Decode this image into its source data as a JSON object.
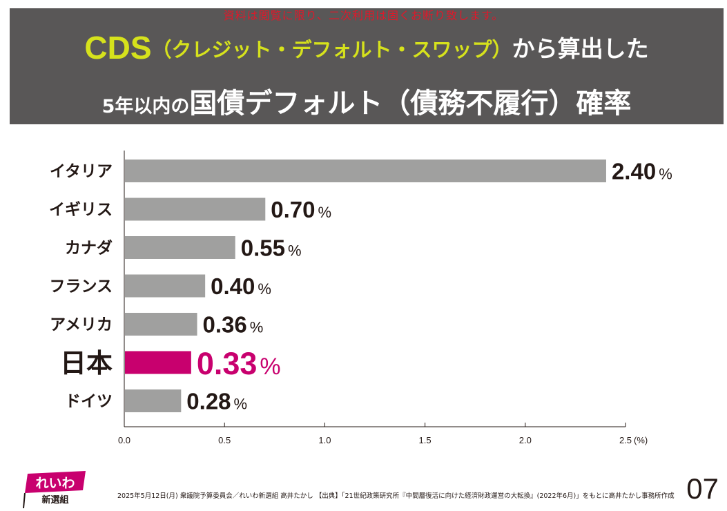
{
  "notice": "資料は閲覧に限り、二次利用は固くお断り致します。",
  "title": {
    "line1_cds": "CDS",
    "line1_paren": "（クレジット・デフォルト・スワップ）",
    "line1_rest": "から算出した",
    "line2_small": "5年以内の",
    "line2_big": "国債デフォルト（債務不履行）確率"
  },
  "colors": {
    "bar": "#a0a09f",
    "highlight": "#c8006e",
    "header_bg": "#595757",
    "accent": "#d6e21c"
  },
  "chart_data": {
    "type": "bar",
    "orientation": "horizontal",
    "categories": [
      "イタリア",
      "イギリス",
      "カナダ",
      "フランス",
      "アメリカ",
      "日本",
      "ドイツ"
    ],
    "values": [
      2.4,
      0.7,
      0.55,
      0.4,
      0.36,
      0.33,
      0.28
    ],
    "value_labels": [
      "2.40",
      "0.70",
      "0.55",
      "0.40",
      "0.36",
      "0.33",
      "0.28"
    ],
    "value_unit": "%",
    "highlight": "日本",
    "xlim": [
      0,
      2.5
    ],
    "x_ticks": [
      "0.0",
      "0.5",
      "1.0",
      "1.5",
      "2.0",
      "2.5"
    ],
    "x_unit_label": "(%)",
    "grid": false
  },
  "footer": {
    "logo_text": "れいわ",
    "logo_sub": "新選組",
    "source": "2025年5月12日(月) 衆議院予算委員会／れいわ新選組 高井たかし 【出典】「21世紀政策研究所『中間層復活に向けた経済財政運営の大転換』(2022年6月)」をもとに高井たかし事務所作成",
    "page_number": "07"
  }
}
